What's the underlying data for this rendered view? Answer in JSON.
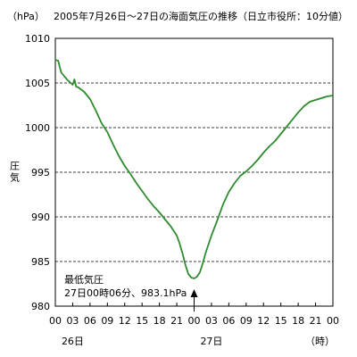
{
  "chart_data": {
    "type": "line",
    "title": "2005年7月26日～27日の海面気圧の推移（日立市役所：10分値）",
    "unit_label": "（hPa）",
    "ylabel": "圧気",
    "ylim": [
      980,
      1010
    ],
    "yticks": [
      980,
      985,
      990,
      995,
      1000,
      1005,
      1010
    ],
    "x_unit": "時",
    "x_unit_label": "（時）",
    "xlim": [
      0,
      48
    ],
    "xticks": [
      "00",
      "03",
      "06",
      "09",
      "12",
      "15",
      "18",
      "21",
      "00",
      "03",
      "06",
      "09",
      "12",
      "15",
      "18",
      "21",
      "00"
    ],
    "day_labels": [
      {
        "label": "26日",
        "x": 3
      },
      {
        "label": "27日",
        "x": 27
      }
    ],
    "grid_y": [
      985,
      990,
      995,
      1000,
      1005
    ],
    "line_color": "#2e8b2e",
    "series": [
      {
        "values": [
          [
            0,
            1007.6
          ],
          [
            0.5,
            1007.5
          ],
          [
            1,
            1006.2
          ],
          [
            1.5,
            1005.8
          ],
          [
            2,
            1005.4
          ],
          [
            2.5,
            1005.1
          ],
          [
            3,
            1004.8
          ],
          [
            3.3,
            1005.4
          ],
          [
            3.6,
            1004.6
          ],
          [
            4,
            1004.5
          ],
          [
            5,
            1004.0
          ],
          [
            6,
            1003.2
          ],
          [
            7,
            1001.9
          ],
          [
            8,
            1000.5
          ],
          [
            9,
            999.5
          ],
          [
            10,
            998.1
          ],
          [
            11,
            996.8
          ],
          [
            12,
            995.7
          ],
          [
            13,
            994.8
          ],
          [
            14,
            993.8
          ],
          [
            15,
            992.9
          ],
          [
            16,
            992.0
          ],
          [
            17,
            991.2
          ],
          [
            18,
            990.5
          ],
          [
            19,
            989.7
          ],
          [
            20,
            988.9
          ],
          [
            21,
            987.9
          ],
          [
            21.5,
            987.0
          ],
          [
            22,
            985.9
          ],
          [
            22.5,
            984.6
          ],
          [
            23,
            983.6
          ],
          [
            23.5,
            983.2
          ],
          [
            24,
            983.1
          ],
          [
            24.5,
            983.3
          ],
          [
            25,
            983.8
          ],
          [
            25.5,
            984.8
          ],
          [
            26,
            986.0
          ],
          [
            27,
            987.9
          ],
          [
            28,
            989.6
          ],
          [
            29,
            991.4
          ],
          [
            30,
            992.8
          ],
          [
            31,
            993.8
          ],
          [
            32,
            994.6
          ],
          [
            33,
            995.1
          ],
          [
            34,
            995.7
          ],
          [
            35,
            996.4
          ],
          [
            36,
            997.2
          ],
          [
            37,
            997.9
          ],
          [
            38,
            998.5
          ],
          [
            39,
            999.3
          ],
          [
            40,
            1000.1
          ],
          [
            41,
            1000.9
          ],
          [
            42,
            1001.7
          ],
          [
            43,
            1002.4
          ],
          [
            44,
            1002.9
          ],
          [
            45,
            1003.1
          ],
          [
            46,
            1003.3
          ],
          [
            47,
            1003.5
          ],
          [
            48,
            1003.6
          ]
        ]
      }
    ],
    "annotation": {
      "line1": "最低気圧",
      "line2": "27日00時06分、983.1hPa",
      "arrow_x": 24,
      "arrow_y": 983.1
    }
  }
}
